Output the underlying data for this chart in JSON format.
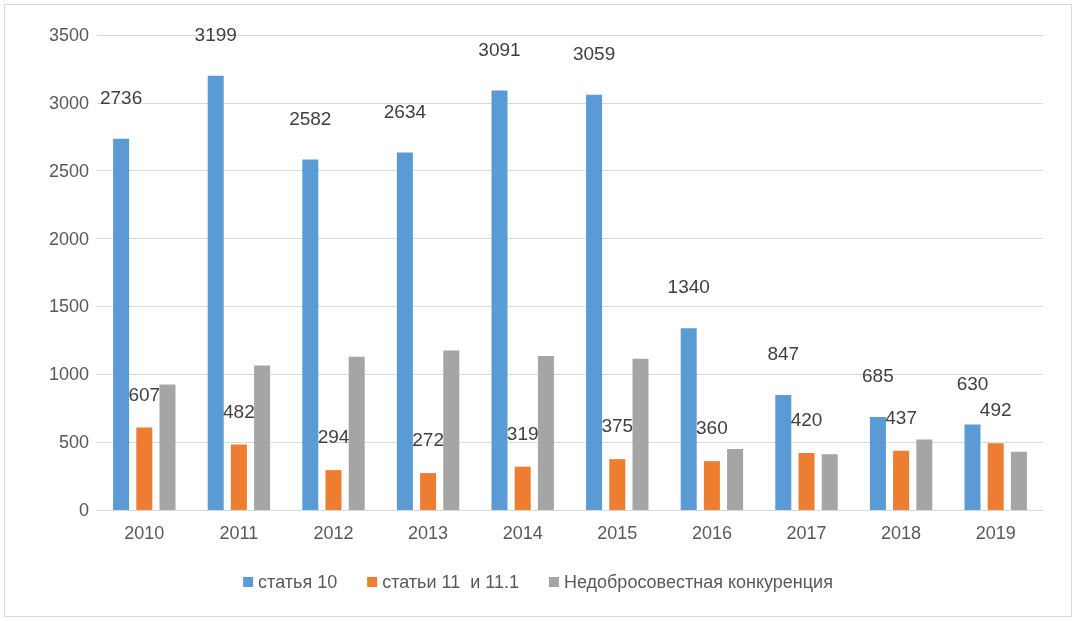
{
  "chart_data": {
    "type": "bar",
    "categories": [
      "2010",
      "2011",
      "2012",
      "2013",
      "2014",
      "2015",
      "2016",
      "2017",
      "2018",
      "2019"
    ],
    "series": [
      {
        "name": "статья 10",
        "color": "#5b9bd5",
        "values": [
          2736,
          3199,
          2582,
          2634,
          3091,
          3059,
          1340,
          847,
          685,
          630
        ],
        "value_labels": [
          "2736",
          "3199",
          "2582",
          "2634",
          "3091",
          "3059",
          "1340",
          "847",
          "685",
          "630"
        ]
      },
      {
        "name": "статьи 11  и 11.1",
        "color": "#ed7d31",
        "values": [
          607,
          482,
          294,
          272,
          319,
          375,
          360,
          420,
          437,
          492
        ],
        "value_labels": [
          "607",
          "482",
          "294",
          "272",
          "319",
          "375",
          "360",
          "420",
          "437",
          "492"
        ]
      },
      {
        "name": "Недобросовестная конкуренция",
        "color": "#a5a5a5",
        "values": [
          925,
          1065,
          1130,
          1175,
          1135,
          1115,
          450,
          410,
          520,
          430
        ]
      }
    ],
    "ylim": [
      0,
      3500
    ],
    "yticks": [
      0,
      500,
      1000,
      1500,
      2000,
      2500,
      3000,
      3500
    ],
    "grid": "y",
    "legend": "bottom"
  }
}
